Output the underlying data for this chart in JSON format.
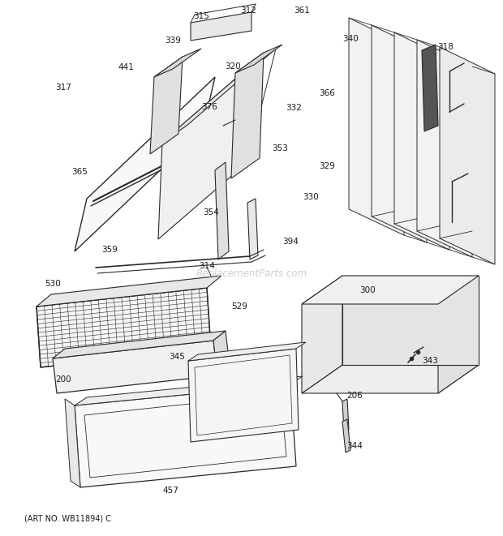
{
  "background_color": "#ffffff",
  "line_color": "#2a2a2a",
  "text_color": "#1a1a1a",
  "watermark": "ReplacementParts.com",
  "watermark_color": "#bbbbbb",
  "footer": "(ART NO. WB11894) C",
  "fig_width": 6.2,
  "fig_height": 6.61,
  "dpi": 100
}
